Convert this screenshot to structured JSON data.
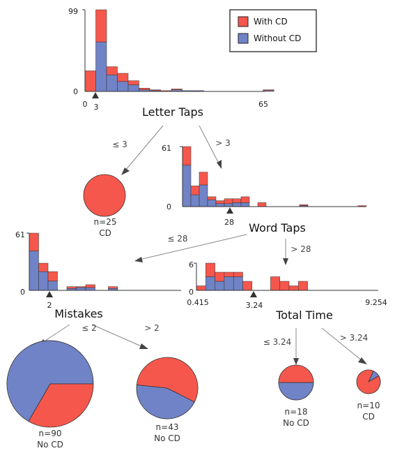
{
  "colors": {
    "with_cd": "#f6574c",
    "without_cd": "#7083c6",
    "edge": "#888888",
    "axis": "#333333"
  },
  "legend": {
    "with_cd": "With CD",
    "without_cd": "Without CD"
  },
  "nodes": {
    "letter_taps": {
      "label": "Letter Taps",
      "axis": {
        "min_label": "0",
        "max_label": "65",
        "y_max_label": "99",
        "y_min_label": "0",
        "threshold_label": "3",
        "x_min": 0,
        "x_max": 65,
        "threshold": 3
      }
    },
    "word_taps": {
      "label": "Word Taps",
      "axis": {
        "y_max_label": "61",
        "y_min_label": "0",
        "threshold_label": "28",
        "threshold": 28
      }
    },
    "mistakes": {
      "label": "Mistakes",
      "axis": {
        "y_max_label": "61",
        "y_min_label": "0",
        "threshold_label": "2",
        "threshold": 2
      }
    },
    "total_time": {
      "label": "Total Time",
      "axis": {
        "min_label": "0.415",
        "max_label": "9.254",
        "y_max_label": "6",
        "y_min_label": "0",
        "threshold_label": "3.24",
        "x_min": 0.415,
        "x_max": 9.254,
        "threshold": 3.24
      }
    }
  },
  "edges": {
    "lt_le": "≤ 3",
    "lt_gt": "> 3",
    "wt_le": "≤ 28",
    "wt_gt": "> 28",
    "mi_le": "≤ 2",
    "mi_gt": "> 2",
    "tt_le": "≤ 3.24",
    "tt_gt": "> 3.24"
  },
  "leaves": {
    "cd25": {
      "n": "n=25",
      "cls": "CD",
      "with_cd": 25,
      "without_cd": 0
    },
    "nocd90": {
      "n": "n=90",
      "cls": "No CD",
      "with_cd": 30,
      "without_cd": 60
    },
    "nocd43": {
      "n": "n=43",
      "cls": "No CD",
      "with_cd": 24,
      "without_cd": 19
    },
    "nocd18": {
      "n": "n=18",
      "cls": "No CD",
      "with_cd": 9,
      "without_cd": 9
    },
    "cd10": {
      "n": "n=10",
      "cls": "CD",
      "with_cd": 9,
      "without_cd": 1
    }
  },
  "chart_data": [
    {
      "type": "bar",
      "name_ref": "Letter Taps",
      "stacked": true,
      "ylim": [
        0,
        99
      ],
      "bins": [
        {
          "without_cd": 0,
          "with_cd": 25
        },
        {
          "without_cd": 60,
          "with_cd": 39
        },
        {
          "without_cd": 20,
          "with_cd": 10
        },
        {
          "without_cd": 12,
          "with_cd": 10
        },
        {
          "without_cd": 8,
          "with_cd": 5
        },
        {
          "without_cd": 2,
          "with_cd": 2
        },
        {
          "without_cd": 1,
          "with_cd": 1
        },
        {
          "without_cd": 0,
          "with_cd": 1
        },
        {
          "without_cd": 2,
          "with_cd": 1
        },
        {
          "without_cd": 1,
          "with_cd": 0
        },
        {
          "without_cd": 1,
          "with_cd": 0
        },
        {
          "without_cd": 1,
          "with_cd": 1
        }
      ]
    },
    {
      "type": "bar",
      "name_ref": "Word Taps",
      "stacked": true,
      "ylim": [
        0,
        61
      ],
      "bins": [
        {
          "without_cd": 42,
          "with_cd": 19
        },
        {
          "without_cd": 12,
          "with_cd": 9
        },
        {
          "without_cd": 22,
          "with_cd": 13
        },
        {
          "without_cd": 7,
          "with_cd": 3
        },
        {
          "without_cd": 3,
          "with_cd": 3
        },
        {
          "without_cd": 3,
          "with_cd": 5
        },
        {
          "without_cd": 4,
          "with_cd": 4
        },
        {
          "without_cd": 4,
          "with_cd": 6
        },
        {
          "without_cd": 0,
          "with_cd": 4
        },
        {
          "without_cd": 1,
          "with_cd": 1
        },
        {
          "without_cd": 0,
          "with_cd": 1
        }
      ]
    },
    {
      "type": "bar",
      "name_ref": "Mistakes",
      "stacked": true,
      "ylim": [
        0,
        61
      ],
      "bins": [
        {
          "without_cd": 42,
          "with_cd": 19
        },
        {
          "without_cd": 20,
          "with_cd": 9
        },
        {
          "without_cd": 10,
          "with_cd": 10
        },
        {
          "without_cd": 2,
          "with_cd": 2
        },
        {
          "without_cd": 3,
          "with_cd": 1
        },
        {
          "without_cd": 3,
          "with_cd": 3
        },
        {
          "without_cd": 2,
          "with_cd": 2
        }
      ]
    },
    {
      "type": "bar",
      "name_ref": "Total Time",
      "stacked": true,
      "ylim": [
        0,
        6
      ],
      "bins": [
        {
          "without_cd": 0,
          "with_cd": 1
        },
        {
          "without_cd": 3,
          "with_cd": 3
        },
        {
          "without_cd": 2,
          "with_cd": 2
        },
        {
          "without_cd": 3,
          "with_cd": 1
        },
        {
          "without_cd": 3,
          "with_cd": 1
        },
        {
          "without_cd": 0,
          "with_cd": 2
        },
        {
          "without_cd": 0,
          "with_cd": 3
        },
        {
          "without_cd": 0,
          "with_cd": 2
        },
        {
          "without_cd": 0,
          "with_cd": 1
        },
        {
          "without_cd": 0,
          "with_cd": 2
        }
      ]
    }
  ]
}
